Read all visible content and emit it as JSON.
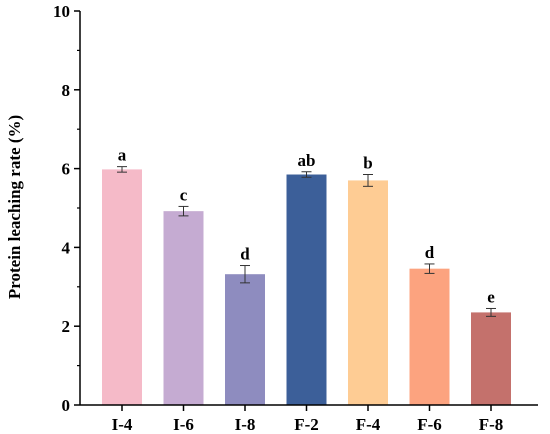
{
  "chart_data": {
    "type": "bar",
    "title": "",
    "xlabel": "",
    "ylabel": "Protein leaching rate (%)",
    "ylim": [
      0,
      10
    ],
    "yticks": [
      "0",
      "2",
      "4",
      "6",
      "8",
      "10"
    ],
    "grid": false,
    "categories": [
      "I-4",
      "I-6",
      "I-8",
      "F-2",
      "F-4",
      "F-6",
      "F-8"
    ],
    "values": [
      5.98,
      4.92,
      3.32,
      5.85,
      5.7,
      3.46,
      2.35
    ],
    "errors": [
      0.07,
      0.12,
      0.22,
      0.07,
      0.15,
      0.12,
      0.1
    ],
    "labels": [
      "a",
      "c",
      "d",
      "ab",
      "b",
      "d",
      "e"
    ],
    "colors": [
      "#F5BAC8",
      "#C5ABD2",
      "#8E8CBF",
      "#3C5F99",
      "#FECC94",
      "#FCA37F",
      "#C4716C"
    ]
  }
}
